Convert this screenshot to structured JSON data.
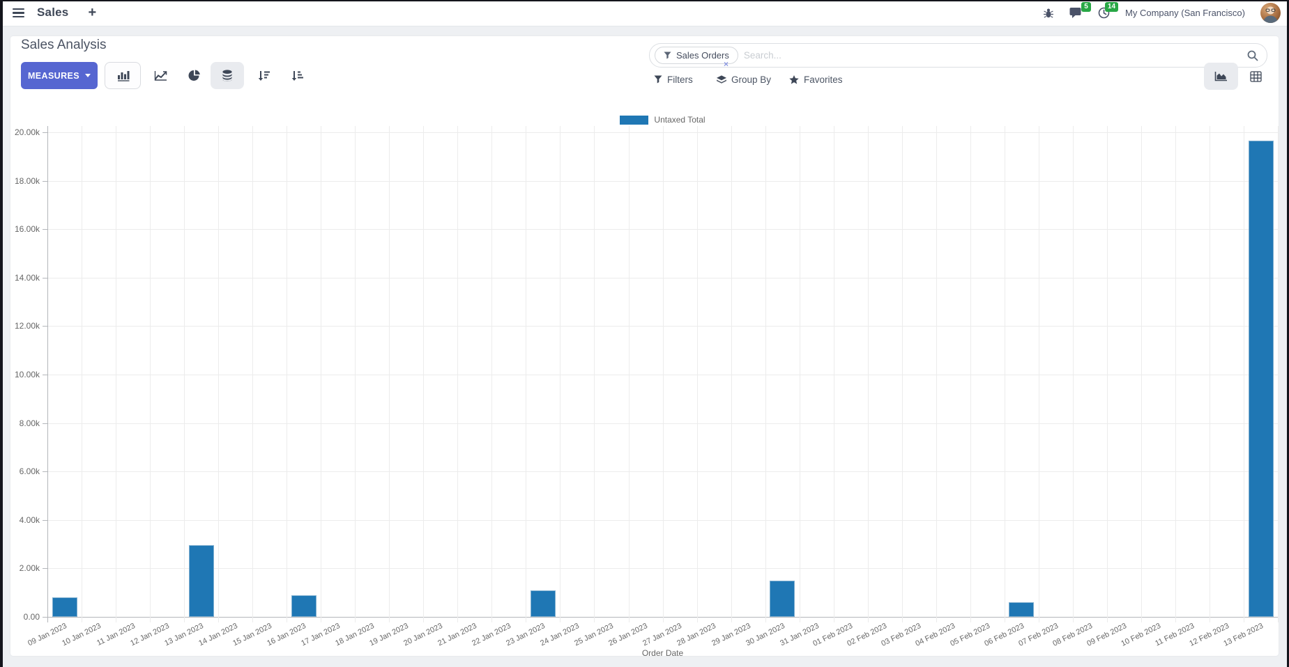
{
  "navbar": {
    "app_name": "Sales",
    "plus": "+",
    "messages_badge": "5",
    "activities_badge": "14",
    "company": "My Company (San Francisco)"
  },
  "control_panel": {
    "title": "Sales Analysis",
    "measures_label": "MEASURES",
    "filters_label": "Filters",
    "group_by_label": "Group By",
    "favorites_label": "Favorites"
  },
  "search": {
    "facet_label": "Sales Orders",
    "placeholder": "Search...",
    "remove_facet": "×"
  },
  "colors": {
    "bar_blue": "#1f77b4",
    "accent_indigo": "#5666d1",
    "badge_green": "#28a745"
  },
  "chart_data": {
    "type": "bar",
    "title": "",
    "legend_entries": [
      "Untaxed Total"
    ],
    "legend_position": "top-center",
    "xlabel": "Order Date",
    "ylabel": "",
    "ylim": [
      0,
      20000
    ],
    "ytick_step": 2000,
    "ytick_labels": [
      "0.00",
      "2.00k",
      "4.00k",
      "6.00k",
      "8.00k",
      "10.00k",
      "12.00k",
      "14.00k",
      "16.00k",
      "18.00k",
      "20.00k"
    ],
    "grid": true,
    "categories": [
      "09 Jan 2023",
      "10 Jan 2023",
      "11 Jan 2023",
      "12 Jan 2023",
      "13 Jan 2023",
      "14 Jan 2023",
      "15 Jan 2023",
      "16 Jan 2023",
      "17 Jan 2023",
      "18 Jan 2023",
      "19 Jan 2023",
      "20 Jan 2023",
      "21 Jan 2023",
      "22 Jan 2023",
      "23 Jan 2023",
      "24 Jan 2023",
      "25 Jan 2023",
      "26 Jan 2023",
      "27 Jan 2023",
      "28 Jan 2023",
      "29 Jan 2023",
      "30 Jan 2023",
      "31 Jan 2023",
      "01 Feb 2023",
      "02 Feb 2023",
      "03 Feb 2023",
      "04 Feb 2023",
      "05 Feb 2023",
      "06 Feb 2023",
      "07 Feb 2023",
      "08 Feb 2023",
      "09 Feb 2023",
      "10 Feb 2023",
      "11 Feb 2023",
      "12 Feb 2023",
      "13 Feb 2023"
    ],
    "series": [
      {
        "name": "Untaxed Total",
        "color": "#1f77b4",
        "values": [
          820,
          0,
          0,
          0,
          2950,
          0,
          0,
          900,
          0,
          0,
          0,
          0,
          0,
          0,
          1080,
          0,
          0,
          0,
          0,
          0,
          0,
          1500,
          0,
          0,
          0,
          0,
          0,
          0,
          600,
          0,
          0,
          0,
          0,
          0,
          0,
          19650
        ]
      }
    ]
  }
}
